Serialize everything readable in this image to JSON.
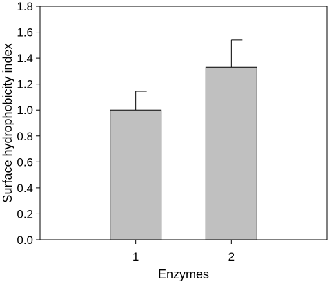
{
  "chart_data": {
    "type": "bar",
    "categories": [
      "1",
      "2"
    ],
    "values": [
      1.0,
      1.33
    ],
    "error_bars": [
      0.145,
      0.21
    ],
    "error_direction": "upper",
    "xlabel": "Enzymes",
    "ylabel": "Surface hydrophobicity index",
    "ylim": [
      0.0,
      1.8
    ],
    "yticks": [
      "0.0",
      "0.2",
      "0.4",
      "0.6",
      "0.8",
      "1.0",
      "1.2",
      "1.4",
      "1.6",
      "1.8"
    ],
    "grid": false,
    "legend": "none",
    "colors": {
      "bar_fill": "#c0c0c0",
      "bar_edge": "#000000",
      "axis": "#000000"
    }
  }
}
